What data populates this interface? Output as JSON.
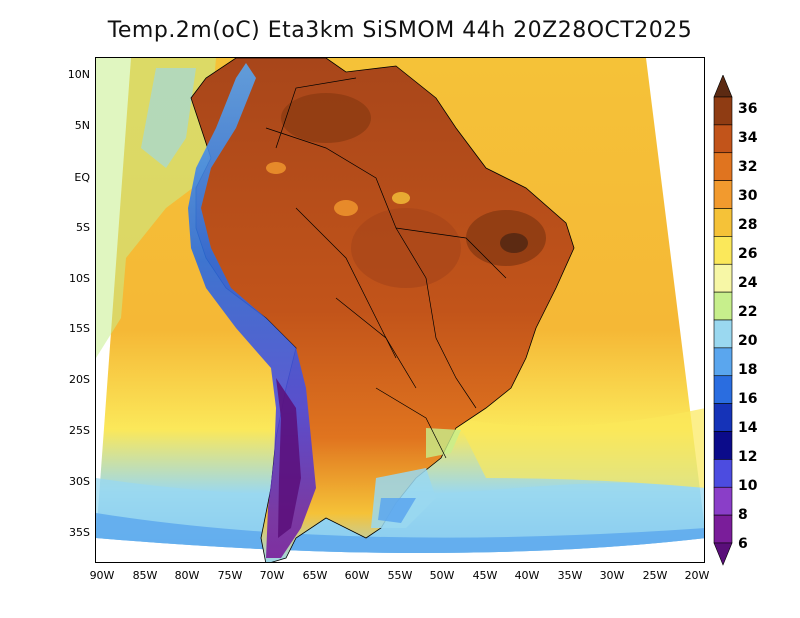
{
  "title": "Temp.2m(oC) Eta3km SiSMOM 44h 20Z28OCT2025",
  "lat_ticks": [
    "10N",
    "5N",
    "EQ",
    "5S",
    "10S",
    "15S",
    "20S",
    "25S",
    "30S",
    "35S"
  ],
  "lon_ticks": [
    "90W",
    "85W",
    "80W",
    "75W",
    "70W",
    "65W",
    "60W",
    "55W",
    "50W",
    "45W",
    "40W",
    "35W",
    "30W",
    "25W",
    "20W"
  ],
  "colorbar": {
    "labels": [
      "36",
      "34",
      "32",
      "30",
      "28",
      "26",
      "24",
      "22",
      "20",
      "18",
      "16",
      "14",
      "12",
      "10",
      "8",
      "6"
    ],
    "colors": [
      "#5c2a12",
      "#8f3c13",
      "#c2541a",
      "#e0741f",
      "#f29a2e",
      "#f5c238",
      "#fbe85a",
      "#f7f7a6",
      "#c7ef8c",
      "#9ad8f0",
      "#5aa6ee",
      "#2a6de0",
      "#1533b8",
      "#0b0b8a",
      "#4c4ce0",
      "#8a3ec8",
      "#7a1d9a",
      "#5a0e7a"
    ]
  },
  "palette": {
    "ocean_warm": "#f5c238",
    "ocean_mid": "#fbe85a",
    "ocean_cool": "#9ad8f0",
    "ocean_cold": "#5aa6ee",
    "land_hot": "#c2541a",
    "land_hotter": "#8f3c13",
    "andes": "#4c4ce0",
    "andes_high": "#7a1d9a",
    "outline": "#000000"
  }
}
